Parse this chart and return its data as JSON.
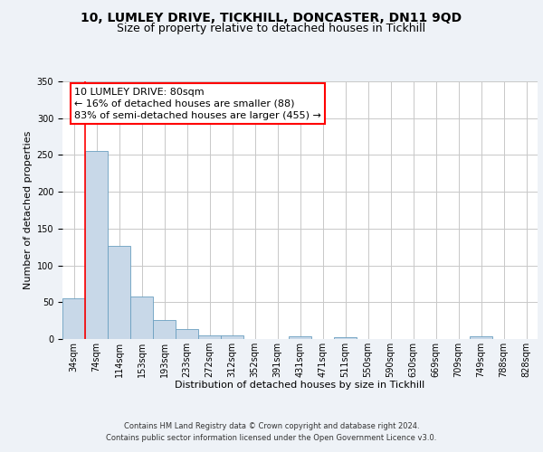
{
  "title": "10, LUMLEY DRIVE, TICKHILL, DONCASTER, DN11 9QD",
  "subtitle": "Size of property relative to detached houses in Tickhill",
  "xlabel": "Distribution of detached houses by size in Tickhill",
  "ylabel": "Number of detached properties",
  "bar_labels": [
    "34sqm",
    "74sqm",
    "114sqm",
    "153sqm",
    "193sqm",
    "233sqm",
    "272sqm",
    "312sqm",
    "352sqm",
    "391sqm",
    "431sqm",
    "471sqm",
    "511sqm",
    "550sqm",
    "590sqm",
    "630sqm",
    "669sqm",
    "709sqm",
    "749sqm",
    "788sqm",
    "828sqm"
  ],
  "bar_values": [
    55,
    255,
    127,
    58,
    26,
    13,
    5,
    5,
    0,
    0,
    4,
    0,
    3,
    0,
    0,
    0,
    0,
    0,
    4,
    0,
    0
  ],
  "bar_color": "#c8d8e8",
  "bar_edge_color": "#6a9fc0",
  "ylim": [
    0,
    350
  ],
  "yticks": [
    0,
    50,
    100,
    150,
    200,
    250,
    300,
    350
  ],
  "red_line_x": 1,
  "annotation_title": "10 LUMLEY DRIVE: 80sqm",
  "annotation_line1": "← 16% of detached houses are smaller (88)",
  "annotation_line2": "83% of semi-detached houses are larger (455) →",
  "footer1": "Contains HM Land Registry data © Crown copyright and database right 2024.",
  "footer2": "Contains public sector information licensed under the Open Government Licence v3.0.",
  "background_color": "#eef2f7",
  "plot_bg_color": "#ffffff",
  "grid_color": "#c8c8c8",
  "title_fontsize": 10,
  "subtitle_fontsize": 9,
  "label_fontsize": 8,
  "tick_fontsize": 7,
  "footer_fontsize": 6,
  "annot_fontsize": 8
}
